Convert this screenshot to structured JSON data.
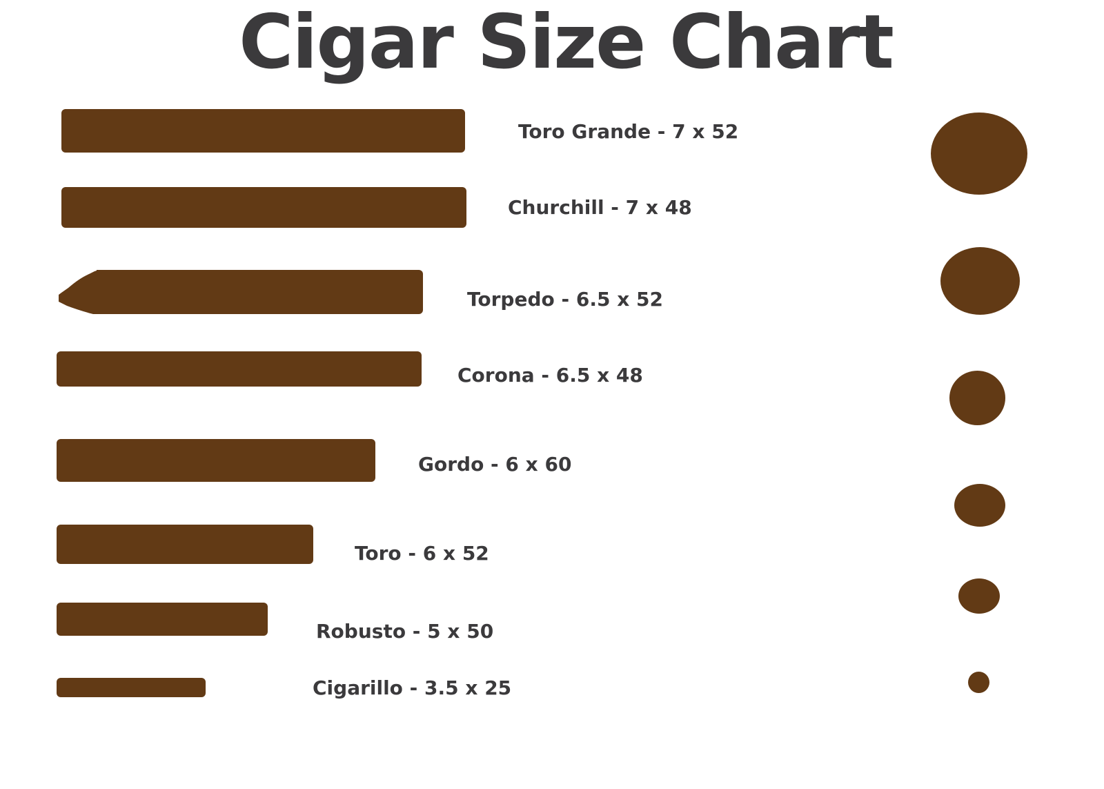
{
  "title": "Cigar Size Chart",
  "colors": {
    "cigar": "#623a15",
    "text": "#3b3a3c",
    "background": "#ffffff"
  },
  "cigars": [
    {
      "name": "Toro Grande",
      "length": 7,
      "ring_gauge": 52,
      "label": "Toro Grande - 7 x 52"
    },
    {
      "name": "Churchill",
      "length": 7,
      "ring_gauge": 48,
      "label": "Churchill - 7 x 48"
    },
    {
      "name": "Torpedo",
      "length": 6.5,
      "ring_gauge": 52,
      "label": "Torpedo - 6.5 x 52"
    },
    {
      "name": "Corona",
      "length": 6.5,
      "ring_gauge": 48,
      "label": "Corona - 6.5 x 48"
    },
    {
      "name": "Gordo",
      "length": 6,
      "ring_gauge": 60,
      "label": "Gordo - 6 x 60"
    },
    {
      "name": "Toro",
      "length": 6,
      "ring_gauge": 52,
      "label": "Toro - 6 x 52"
    },
    {
      "name": "Robusto",
      "length": 5,
      "ring_gauge": 50,
      "label": "Robusto - 5 x 50"
    },
    {
      "name": "Cigarillo",
      "length": 3.5,
      "ring_gauge": 25,
      "label": "Cigarillo - 3.5 x 25"
    }
  ]
}
